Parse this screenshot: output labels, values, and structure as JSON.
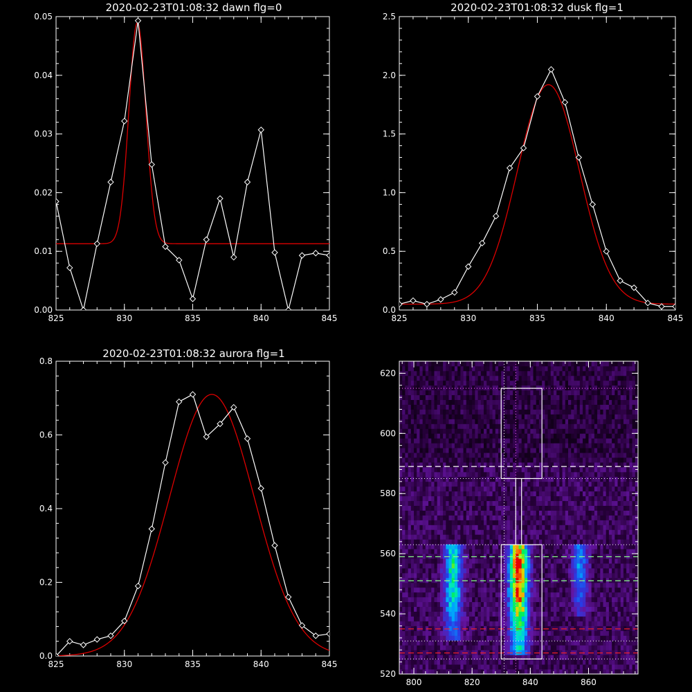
{
  "chart_data": [
    {
      "type": "line",
      "title": "2020-02-23T01:08:32 dawn flg=0",
      "xlim": [
        825,
        845
      ],
      "ylim": [
        0,
        0.05
      ],
      "xticks": [
        825,
        830,
        835,
        840,
        845
      ],
      "yticks": [
        0.0,
        0.01,
        0.02,
        0.03,
        0.04,
        0.05
      ],
      "xtick_labels": [
        "825",
        "830",
        "835",
        "840",
        "845"
      ],
      "ytick_labels": [
        "0.00",
        "0.01",
        "0.02",
        "0.03",
        "0.04",
        "0.05"
      ],
      "xlabel": "",
      "ylabel": "",
      "grid": false,
      "series": [
        {
          "kind": "data",
          "color": "#ffffff",
          "marker": "diamond",
          "x": [
            825,
            826,
            827,
            828,
            829,
            830,
            831,
            832,
            833,
            834,
            835,
            836,
            837,
            838,
            839,
            840,
            841,
            842,
            843,
            844,
            845
          ],
          "y": [
            0.0185,
            0.0072,
            0.0,
            0.0113,
            0.0218,
            0.0322,
            0.0493,
            0.0248,
            0.0108,
            0.0085,
            0.0019,
            0.012,
            0.019,
            0.009,
            0.0218,
            0.0307,
            0.0098,
            0.0,
            0.0093,
            0.0097,
            0.0093
          ]
        },
        {
          "kind": "fit",
          "color": "#dd0000",
          "model": "gaussian",
          "amplitude": 0.0377,
          "center": 830.95,
          "sigma": 0.62,
          "offset": 0.0113
        }
      ]
    },
    {
      "type": "line",
      "title": "2020-02-23T01:08:32 dusk flg=1",
      "xlim": [
        825,
        845
      ],
      "ylim": [
        0,
        2.5
      ],
      "xticks": [
        825,
        830,
        835,
        840,
        845
      ],
      "yticks": [
        0.0,
        0.5,
        1.0,
        1.5,
        2.0,
        2.5
      ],
      "xtick_labels": [
        "825",
        "830",
        "835",
        "840",
        "845"
      ],
      "ytick_labels": [
        "0.0",
        "0.5",
        "1.0",
        "1.5",
        "2.0",
        "2.5"
      ],
      "xlabel": "",
      "ylabel": "",
      "grid": false,
      "series": [
        {
          "kind": "data",
          "color": "#ffffff",
          "marker": "diamond",
          "x": [
            825,
            826,
            827,
            828,
            829,
            830,
            831,
            832,
            833,
            834,
            835,
            836,
            837,
            838,
            839,
            840,
            841,
            842,
            843,
            844,
            845
          ],
          "y": [
            0.05,
            0.08,
            0.05,
            0.09,
            0.15,
            0.37,
            0.57,
            0.8,
            1.21,
            1.38,
            1.82,
            2.05,
            1.77,
            1.3,
            0.9,
            0.5,
            0.25,
            0.19,
            0.06,
            0.03,
            0.03
          ]
        },
        {
          "kind": "fit",
          "color": "#dd0000",
          "model": "gaussian",
          "amplitude": 1.87,
          "center": 835.8,
          "sigma": 2.25,
          "offset": 0.05
        }
      ]
    },
    {
      "type": "line",
      "title": "2020-02-23T01:08:32 aurora flg=1",
      "xlim": [
        825,
        845
      ],
      "ylim": [
        0,
        0.8
      ],
      "xticks": [
        825,
        830,
        835,
        840,
        845
      ],
      "yticks": [
        0.0,
        0.2,
        0.4,
        0.6,
        0.8
      ],
      "xtick_labels": [
        "825",
        "830",
        "835",
        "840",
        "845"
      ],
      "ytick_labels": [
        "0.0",
        "0.2",
        "0.4",
        "0.6",
        "0.8"
      ],
      "xlabel": "",
      "ylabel": "",
      "grid": false,
      "series": [
        {
          "kind": "data",
          "color": "#ffffff",
          "marker": "diamond",
          "x": [
            825,
            826,
            827,
            828,
            829,
            830,
            831,
            832,
            833,
            834,
            835,
            836,
            837,
            838,
            839,
            840,
            841,
            842,
            843,
            844,
            845
          ],
          "y": [
            0.0,
            0.04,
            0.03,
            0.045,
            0.055,
            0.095,
            0.19,
            0.345,
            0.525,
            0.69,
            0.71,
            0.595,
            0.63,
            0.675,
            0.59,
            0.455,
            0.3,
            0.16,
            0.083,
            0.055,
            0.06
          ]
        },
        {
          "kind": "fit",
          "color": "#dd0000",
          "model": "gaussian",
          "amplitude": 0.71,
          "center": 836.4,
          "sigma": 3.1,
          "offset": 0.0
        }
      ]
    },
    {
      "type": "heatmap",
      "title": "",
      "xlim": [
        795,
        877
      ],
      "ylim": [
        520,
        624
      ],
      "xticks": [
        800,
        820,
        840,
        860
      ],
      "yticks": [
        520,
        540,
        560,
        580,
        600,
        620
      ],
      "xtick_labels": [
        "800",
        "820",
        "840",
        "860"
      ],
      "ytick_labels": [
        "520",
        "540",
        "560",
        "580",
        "600",
        "620"
      ],
      "xlabel": "",
      "ylabel": "",
      "colormap": "rainbow on black",
      "emission_columns": [
        {
          "x_center": 813.5,
          "x_halfwidth": 3.5,
          "y_low": 530,
          "y_high": 563,
          "peak": 0.55,
          "peak_y": 552
        },
        {
          "x_center": 836,
          "x_halfwidth": 3.5,
          "y_low": 525,
          "y_high": 563,
          "peak": 1.0,
          "peak_y": 553
        },
        {
          "x_center": 857,
          "x_halfwidth": 3.0,
          "y_low": 538,
          "y_high": 563,
          "peak": 0.4,
          "peak_y": 556
        }
      ],
      "overlays": {
        "boxes": [
          {
            "x0": 830,
            "x1": 844,
            "y0": 585,
            "y1": 615,
            "color": "#ffffff"
          },
          {
            "x0": 830,
            "x1": 844,
            "y0": 525,
            "y1": 563,
            "color": "#ffffff"
          }
        ],
        "connector_x": [
          835,
          837
        ],
        "connector_y": [
          563,
          585
        ],
        "vertical_dotted": [
          {
            "x": 831,
            "color": "#ffffff"
          },
          {
            "x": 835,
            "color": "#ff66ff"
          }
        ],
        "horizontal_dotted": [
          {
            "y": 615,
            "color": "#ff66ff"
          },
          {
            "y": 585,
            "color": "#ffffff"
          },
          {
            "y": 563,
            "color": "#ffffff"
          },
          {
            "y": 531,
            "color": "#ffffff"
          },
          {
            "y": 525,
            "color": "#ffffff"
          }
        ],
        "horizontal_dashed": [
          {
            "y": 589,
            "color": "#ffffff"
          },
          {
            "y": 559,
            "color": "#88ff88"
          },
          {
            "y": 551,
            "color": "#88ff88"
          },
          {
            "y": 535,
            "color": "#ff2222"
          },
          {
            "y": 527,
            "color": "#ff2222"
          }
        ]
      }
    }
  ]
}
